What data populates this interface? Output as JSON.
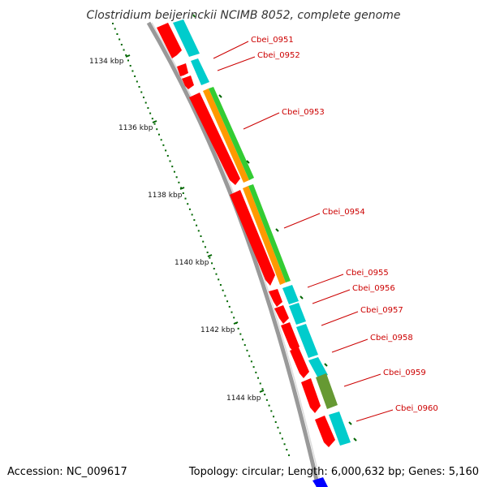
{
  "title": "Clostridium beijerinckii NCIMB 8052, complete genome",
  "footer": {
    "accession": "Accession: NC_009617",
    "summary": "Topology: circular; Length: 6,000,632 bp; Genes: 5,160"
  },
  "kbp_ticks": [
    {
      "label": "1134 kbp",
      "position_kbp": 1134
    },
    {
      "label": "1136 kbp",
      "position_kbp": 1136
    },
    {
      "label": "1138 kbp",
      "position_kbp": 1138
    },
    {
      "label": "1140 kbp",
      "position_kbp": 1140
    },
    {
      "label": "1142 kbp",
      "position_kbp": 1142
    },
    {
      "label": "1144 kbp",
      "position_kbp": 1144
    }
  ],
  "genes": [
    {
      "name": "Cbei_0951",
      "strand": "+",
      "track": "cyan"
    },
    {
      "name": "Cbei_0952",
      "strand": "+",
      "track": "cyan"
    },
    {
      "name": "Cbei_0953",
      "strand": "+",
      "track": "orange-green"
    },
    {
      "name": "Cbei_0954",
      "strand": "+",
      "track": "orange-green"
    },
    {
      "name": "Cbei_0955",
      "strand": "+",
      "track": "cyan"
    },
    {
      "name": "Cbei_0956",
      "strand": "+",
      "track": "cyan"
    },
    {
      "name": "Cbei_0957",
      "strand": "+",
      "track": "cyan"
    },
    {
      "name": "Cbei_0958",
      "strand": "+",
      "track": "cyan"
    },
    {
      "name": "Cbei_0959",
      "strand": "+",
      "track": "olive"
    },
    {
      "name": "Cbei_0960",
      "strand": "+",
      "track": "cyan"
    }
  ],
  "colors": {
    "cds": "#ff0000",
    "cog_cyan": "#00cccc",
    "cog_orange": "#ff9900",
    "cog_green": "#33cc33",
    "cog_olive": "#669933",
    "label": "#cc0000",
    "tick": "#006600",
    "backbone": "#888888"
  }
}
